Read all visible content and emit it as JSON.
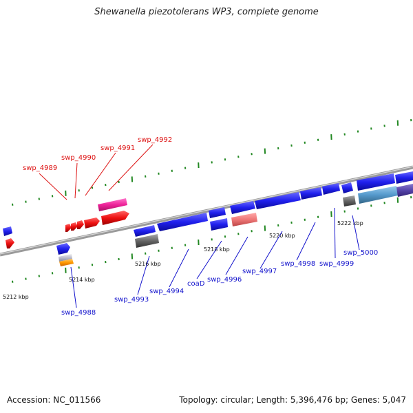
{
  "title": "Shewanella piezotolerans WP3, complete genome",
  "footer": {
    "accession": "Accession: NC_011566",
    "summary": "Topology: circular; Length: 5,396,476 bp; Genes: 5,047"
  },
  "ticks": [
    "5212 kbp",
    "5214 kbp",
    "5216 kbp",
    "5218 kbp",
    "5220 kbp",
    "5222 kbp"
  ],
  "gene_labels_upper": [
    "swp_4989",
    "swp_4990",
    "swp_4991",
    "swp_4992"
  ],
  "gene_labels_lower": [
    "swp_4988",
    "swp_4993",
    "swp_4994",
    "coaD",
    "swp_4996",
    "swp_4997",
    "swp_4998",
    "swp_4999",
    "swp_5000"
  ],
  "colors": {
    "cds_forward_labeled": "#ee1111",
    "cds_reverse": "#2020ee",
    "pink_feature": "#ee2299",
    "salmon_feature": "#ee7777",
    "gray_feature": "#666666",
    "orange_feature": "#ff9900",
    "steelblue_feature": "#5599cc",
    "purple_feature": "#5544aa",
    "tick_mark": "#228822",
    "backbone": "#888888"
  }
}
